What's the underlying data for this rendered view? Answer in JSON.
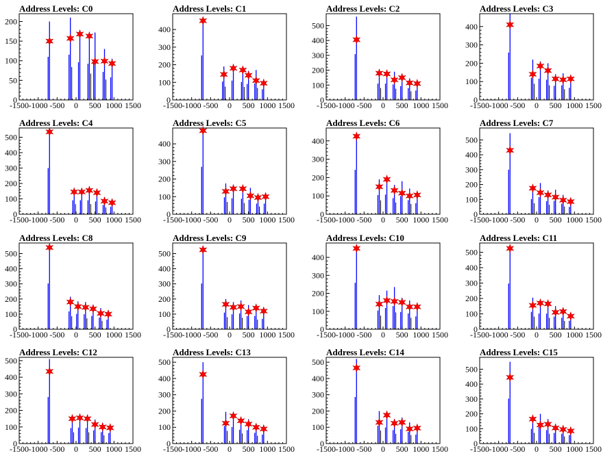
{
  "chart_data": [
    {
      "type": "bar",
      "title": "Address Levels: C0",
      "xlim": [
        -1500,
        1500
      ],
      "ylim": [
        0,
        220
      ],
      "xticks": [
        "-1500",
        "-1000",
        "-500",
        "0",
        "500",
        "1000",
        "1500"
      ],
      "yticks": [
        "0",
        "50",
        "100",
        "150",
        "200"
      ],
      "peaks": [
        {
          "x": -700,
          "height": 200,
          "marker": 150
        },
        {
          "x": -150,
          "height": 210,
          "marker": 157
        },
        {
          "x": 100,
          "height": 175,
          "marker": 168
        },
        {
          "x": 350,
          "height": 168,
          "marker": 163
        },
        {
          "x": 500,
          "height": 172,
          "marker": 98
        },
        {
          "x": 750,
          "height": 130,
          "marker": 99
        },
        {
          "x": 950,
          "height": 105,
          "marker": 93
        }
      ]
    },
    {
      "type": "bar",
      "title": "Address Levels: C1",
      "xlim": [
        -1500,
        1500
      ],
      "ylim": [
        0,
        490
      ],
      "xticks": [
        "-1500",
        "-1000",
        "-500",
        "0",
        "500",
        "1000",
        "1500"
      ],
      "yticks": [
        "0",
        "100",
        "200",
        "300",
        "400"
      ],
      "peaks": [
        {
          "x": -700,
          "height": 460,
          "marker": 450
        },
        {
          "x": -150,
          "height": 190,
          "marker": 145
        },
        {
          "x": 100,
          "height": 200,
          "marker": 180
        },
        {
          "x": 350,
          "height": 185,
          "marker": 170
        },
        {
          "x": 500,
          "height": 165,
          "marker": 140
        },
        {
          "x": 700,
          "height": 170,
          "marker": 110
        },
        {
          "x": 900,
          "height": 110,
          "marker": 95
        }
      ]
    },
    {
      "type": "bar",
      "title": "Address Levels: C2",
      "xlim": [
        -1500,
        1500
      ],
      "ylim": [
        0,
        580
      ],
      "xticks": [
        "-1500",
        "-1000",
        "-500",
        "0",
        "500",
        "1000",
        "1500"
      ],
      "yticks": [
        "0",
        "100",
        "200",
        "300",
        "400",
        "500"
      ],
      "peaks": [
        {
          "x": -700,
          "height": 560,
          "marker": 405
        },
        {
          "x": -100,
          "height": 200,
          "marker": 180
        },
        {
          "x": 100,
          "height": 200,
          "marker": 175
        },
        {
          "x": 300,
          "height": 190,
          "marker": 135
        },
        {
          "x": 500,
          "height": 170,
          "marker": 150
        },
        {
          "x": 700,
          "height": 145,
          "marker": 115
        },
        {
          "x": 900,
          "height": 115,
          "marker": 110
        }
      ]
    },
    {
      "type": "bar",
      "title": "Address Levels: C3",
      "xlim": [
        -1500,
        1500
      ],
      "ylim": [
        0,
        470
      ],
      "xticks": [
        "-1500",
        "-1000",
        "-500",
        "0",
        "500",
        "1000",
        "1500"
      ],
      "yticks": [
        "0",
        "100",
        "200",
        "300",
        "400"
      ],
      "peaks": [
        {
          "x": -700,
          "height": 470,
          "marker": 410
        },
        {
          "x": -100,
          "height": 220,
          "marker": 140
        },
        {
          "x": 100,
          "height": 210,
          "marker": 185
        },
        {
          "x": 300,
          "height": 200,
          "marker": 160
        },
        {
          "x": 500,
          "height": 140,
          "marker": 115
        },
        {
          "x": 700,
          "height": 145,
          "marker": 110
        },
        {
          "x": 900,
          "height": 120,
          "marker": 115
        }
      ]
    },
    {
      "type": "bar",
      "title": "Address Levels: C4",
      "xlim": [
        -1500,
        1500
      ],
      "ylim": [
        0,
        560
      ],
      "xticks": [
        "-1500",
        "-1000",
        "-500",
        "0",
        "500",
        "1000",
        "1500"
      ],
      "yticks": [
        "0",
        "100",
        "200",
        "300",
        "400",
        "500"
      ],
      "peaks": [
        {
          "x": -700,
          "height": 545,
          "marker": 535
        },
        {
          "x": -50,
          "height": 165,
          "marker": 145
        },
        {
          "x": 150,
          "height": 165,
          "marker": 145
        },
        {
          "x": 350,
          "height": 165,
          "marker": 155
        },
        {
          "x": 550,
          "height": 150,
          "marker": 140
        },
        {
          "x": 750,
          "height": 110,
          "marker": 85
        },
        {
          "x": 950,
          "height": 90,
          "marker": 75
        }
      ]
    },
    {
      "type": "bar",
      "title": "Address Levels: C5",
      "xlim": [
        -1500,
        1500
      ],
      "ylim": [
        0,
        490
      ],
      "xticks": [
        "-1500",
        "-1000",
        "-500",
        "0",
        "500",
        "1000",
        "1500"
      ],
      "yticks": [
        "0",
        "100",
        "200",
        "300",
        "400"
      ],
      "peaks": [
        {
          "x": -700,
          "height": 490,
          "marker": 475
        },
        {
          "x": -100,
          "height": 175,
          "marker": 130
        },
        {
          "x": 100,
          "height": 165,
          "marker": 145
        },
        {
          "x": 350,
          "height": 160,
          "marker": 145
        },
        {
          "x": 550,
          "height": 150,
          "marker": 105
        },
        {
          "x": 750,
          "height": 110,
          "marker": 95
        },
        {
          "x": 950,
          "height": 110,
          "marker": 100
        }
      ]
    },
    {
      "type": "bar",
      "title": "Address Levels: C6",
      "xlim": [
        -1500,
        1500
      ],
      "ylim": [
        0,
        470
      ],
      "xticks": [
        "-1500",
        "-1000",
        "-500",
        "0",
        "500",
        "1000",
        "1500"
      ],
      "yticks": [
        "0",
        "100",
        "200",
        "300",
        "400"
      ],
      "peaks": [
        {
          "x": -700,
          "height": 440,
          "marker": 425
        },
        {
          "x": -100,
          "height": 190,
          "marker": 150
        },
        {
          "x": 100,
          "height": 195,
          "marker": 190
        },
        {
          "x": 300,
          "height": 160,
          "marker": 130
        },
        {
          "x": 500,
          "height": 180,
          "marker": 115
        },
        {
          "x": 700,
          "height": 140,
          "marker": 100
        },
        {
          "x": 900,
          "height": 110,
          "marker": 105
        }
      ]
    },
    {
      "type": "bar",
      "title": "Address Levels: C7",
      "xlim": [
        -1500,
        1500
      ],
      "ylim": [
        0,
        580
      ],
      "xticks": [
        "-1500",
        "-1000",
        "-500",
        "0",
        "500",
        "1000",
        "1500"
      ],
      "yticks": [
        "0",
        "100",
        "200",
        "300",
        "400",
        "500"
      ],
      "peaks": [
        {
          "x": -700,
          "height": 545,
          "marker": 430
        },
        {
          "x": -100,
          "height": 185,
          "marker": 175
        },
        {
          "x": 100,
          "height": 210,
          "marker": 145
        },
        {
          "x": 300,
          "height": 160,
          "marker": 130
        },
        {
          "x": 500,
          "height": 165,
          "marker": 115
        },
        {
          "x": 700,
          "height": 130,
          "marker": 95
        },
        {
          "x": 900,
          "height": 90,
          "marker": 85
        }
      ]
    },
    {
      "type": "bar",
      "title": "Address Levels: C8",
      "xlim": [
        -1500,
        1500
      ],
      "ylim": [
        0,
        570
      ],
      "xticks": [
        "-1500",
        "-1000",
        "-500",
        "0",
        "500",
        "1000",
        "1500"
      ],
      "yticks": [
        "0",
        "100",
        "200",
        "300",
        "400",
        "500"
      ],
      "peaks": [
        {
          "x": -700,
          "height": 550,
          "marker": 540
        },
        {
          "x": -150,
          "height": 215,
          "marker": 180
        },
        {
          "x": 50,
          "height": 185,
          "marker": 150
        },
        {
          "x": 250,
          "height": 180,
          "marker": 145
        },
        {
          "x": 450,
          "height": 160,
          "marker": 135
        },
        {
          "x": 650,
          "height": 140,
          "marker": 105
        },
        {
          "x": 850,
          "height": 115,
          "marker": 100
        }
      ]
    },
    {
      "type": "bar",
      "title": "Address Levels: C9",
      "xlim": [
        -1500,
        1500
      ],
      "ylim": [
        0,
        570
      ],
      "xticks": [
        "-1500",
        "-1000",
        "-500",
        "0",
        "500",
        "1000",
        "1500"
      ],
      "yticks": [
        "0",
        "100",
        "200",
        "300",
        "400",
        "500"
      ],
      "peaks": [
        {
          "x": -700,
          "height": 550,
          "marker": 525
        },
        {
          "x": -100,
          "height": 200,
          "marker": 165
        },
        {
          "x": 100,
          "height": 180,
          "marker": 145
        },
        {
          "x": 300,
          "height": 190,
          "marker": 150
        },
        {
          "x": 500,
          "height": 160,
          "marker": 115
        },
        {
          "x": 700,
          "height": 160,
          "marker": 140
        },
        {
          "x": 900,
          "height": 125,
          "marker": 120
        }
      ]
    },
    {
      "type": "bar",
      "title": "Address Levels: C10",
      "xlim": [
        -1500,
        1500
      ],
      "ylim": [
        0,
        480
      ],
      "xticks": [
        "-1500",
        "-1000",
        "-500",
        "0",
        "500",
        "1000",
        "1500"
      ],
      "yticks": [
        "0",
        "100",
        "200",
        "300",
        "400"
      ],
      "peaks": [
        {
          "x": -700,
          "height": 470,
          "marker": 450
        },
        {
          "x": -100,
          "height": 190,
          "marker": 140
        },
        {
          "x": 100,
          "height": 215,
          "marker": 160
        },
        {
          "x": 300,
          "height": 235,
          "marker": 155
        },
        {
          "x": 500,
          "height": 175,
          "marker": 150
        },
        {
          "x": 700,
          "height": 160,
          "marker": 125
        },
        {
          "x": 900,
          "height": 130,
          "marker": 125
        }
      ]
    },
    {
      "type": "bar",
      "title": "Address Levels: C11",
      "xlim": [
        -1500,
        1500
      ],
      "ylim": [
        0,
        560
      ],
      "xticks": [
        "-1500",
        "-1000",
        "-500",
        "0",
        "500",
        "1000",
        "1500"
      ],
      "yticks": [
        "0",
        "100",
        "200",
        "300",
        "400",
        "500"
      ],
      "peaks": [
        {
          "x": -700,
          "height": 540,
          "marker": 525
        },
        {
          "x": -100,
          "height": 205,
          "marker": 155
        },
        {
          "x": 100,
          "height": 185,
          "marker": 170
        },
        {
          "x": 300,
          "height": 185,
          "marker": 165
        },
        {
          "x": 500,
          "height": 150,
          "marker": 110
        },
        {
          "x": 700,
          "height": 135,
          "marker": 115
        },
        {
          "x": 900,
          "height": 100,
          "marker": 85
        }
      ]
    },
    {
      "type": "bar",
      "title": "Address Levels: C12",
      "xlim": [
        -1500,
        1500
      ],
      "ylim": [
        0,
        520
      ],
      "xticks": [
        "-1500",
        "-1000",
        "-500",
        "0",
        "500",
        "1000",
        "1500"
      ],
      "yticks": [
        "0",
        "100",
        "200",
        "300",
        "400",
        "500"
      ],
      "peaks": [
        {
          "x": -700,
          "height": 510,
          "marker": 435
        },
        {
          "x": -100,
          "height": 170,
          "marker": 150
        },
        {
          "x": 100,
          "height": 175,
          "marker": 155
        },
        {
          "x": 300,
          "height": 170,
          "marker": 150
        },
        {
          "x": 500,
          "height": 145,
          "marker": 115
        },
        {
          "x": 700,
          "height": 125,
          "marker": 100
        },
        {
          "x": 900,
          "height": 115,
          "marker": 95
        }
      ]
    },
    {
      "type": "bar",
      "title": "Address Levels: C13",
      "xlim": [
        -1500,
        1500
      ],
      "ylim": [
        0,
        530
      ],
      "xticks": [
        "-1500",
        "-1000",
        "-500",
        "0",
        "500",
        "1000",
        "1500"
      ],
      "yticks": [
        "0",
        "100",
        "200",
        "300",
        "400",
        "500"
      ],
      "peaks": [
        {
          "x": -700,
          "height": 500,
          "marker": 425
        },
        {
          "x": -100,
          "height": 195,
          "marker": 125
        },
        {
          "x": 100,
          "height": 185,
          "marker": 170
        },
        {
          "x": 300,
          "height": 155,
          "marker": 140
        },
        {
          "x": 500,
          "height": 150,
          "marker": 120
        },
        {
          "x": 700,
          "height": 120,
          "marker": 100
        },
        {
          "x": 900,
          "height": 100,
          "marker": 90
        }
      ]
    },
    {
      "type": "bar",
      "title": "Address Levels: C14",
      "xlim": [
        -1500,
        1500
      ],
      "ylim": [
        0,
        530
      ],
      "xticks": [
        "-1500",
        "-1000",
        "-500",
        "0",
        "500",
        "1000",
        "1500"
      ],
      "yticks": [
        "0",
        "100",
        "200",
        "300",
        "400",
        "500"
      ],
      "peaks": [
        {
          "x": -700,
          "height": 520,
          "marker": 465
        },
        {
          "x": -100,
          "height": 200,
          "marker": 130
        },
        {
          "x": 100,
          "height": 180,
          "marker": 175
        },
        {
          "x": 300,
          "height": 150,
          "marker": 125
        },
        {
          "x": 500,
          "height": 160,
          "marker": 130
        },
        {
          "x": 700,
          "height": 130,
          "marker": 90
        },
        {
          "x": 900,
          "height": 100,
          "marker": 95
        }
      ]
    },
    {
      "type": "bar",
      "title": "Address Levels: C15",
      "xlim": [
        -1500,
        1500
      ],
      "ylim": [
        0,
        580
      ],
      "xticks": [
        "-1500",
        "-1000",
        "-500",
        "0",
        "500",
        "1000",
        "1500"
      ],
      "yticks": [
        "0",
        "100",
        "200",
        "300",
        "400",
        "500"
      ],
      "peaks": [
        {
          "x": -700,
          "height": 550,
          "marker": 445
        },
        {
          "x": -100,
          "height": 180,
          "marker": 165
        },
        {
          "x": 100,
          "height": 200,
          "marker": 125
        },
        {
          "x": 300,
          "height": 165,
          "marker": 130
        },
        {
          "x": 500,
          "height": 130,
          "marker": 105
        },
        {
          "x": 700,
          "height": 120,
          "marker": 95
        },
        {
          "x": 900,
          "height": 105,
          "marker": 85
        }
      ]
    }
  ]
}
